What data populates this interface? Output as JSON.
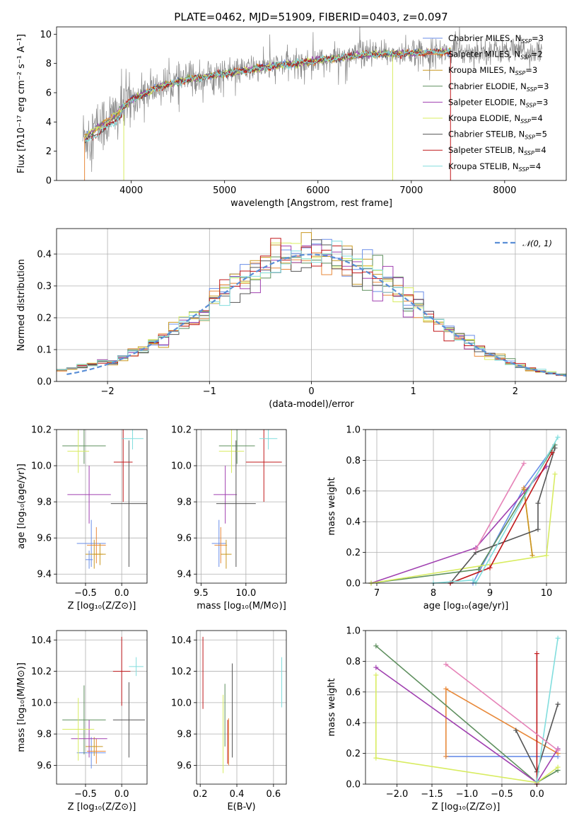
{
  "title": "PLATE=0462, MJD=51909, FIBERID=0403, z=0.097",
  "colors": {
    "Chabrier MILES": "#6a8ee8",
    "Salpeter MILES": "#e8893a",
    "Kroupa MILES": "#c99820",
    "Chabrier ELODIE": "#5e8f5e",
    "Salpeter ELODIE": "#a040b0",
    "Kroupa ELODIE": "#d8ec60",
    "Chabrier STELIB": "#555555",
    "Salpeter STELIB": "#c0181b",
    "Kroupa STELIB": "#82dede",
    "normal": "#5b8fd6",
    "spectrum": "#888888"
  },
  "chart_data": [
    {
      "id": "spectrum",
      "type": "line",
      "xlabel": "wavelength [Angstrom, rest frame]",
      "ylabel": "Flux [fλ10⁻¹⁷ erg cm⁻² s⁻¹ A⁻¹]",
      "xlim": [
        3200,
        8660
      ],
      "ylim": [
        0,
        10.5
      ],
      "xticks": [
        4000,
        5000,
        6000,
        7000,
        8000
      ],
      "yticks": [
        0,
        2,
        4,
        6,
        8,
        10
      ],
      "legend_position": "right",
      "continuum": {
        "x": [
          3500,
          3800,
          4000,
          4300,
          4600,
          5000,
          5500,
          6000,
          6500,
          7000,
          7400,
          8000,
          8400
        ],
        "y": [
          3.0,
          4.3,
          5.5,
          6.4,
          6.9,
          7.3,
          7.8,
          8.2,
          8.6,
          8.7,
          8.8,
          8.9,
          8.7
        ]
      },
      "models_x_range": [
        3500,
        7420
      ],
      "legend": [
        {
          "label": "Chabrier MILES, N",
          "sub": "SSP",
          "val": "=3",
          "color": "Chabrier MILES"
        },
        {
          "label": "Salpeter MILES, N",
          "sub": "SSP",
          "val": "=2",
          "color": "Salpeter MILES"
        },
        {
          "label": "Kroupa MILES, N",
          "sub": "SSP",
          "val": "=3",
          "color": "Kroupa MILES"
        },
        {
          "label": "Chabrier ELODIE, N",
          "sub": "SSP",
          "val": "=3",
          "color": "Chabrier ELODIE"
        },
        {
          "label": "Salpeter ELODIE, N",
          "sub": "SSP",
          "val": "=3",
          "color": "Salpeter ELODIE"
        },
        {
          "label": "Kroupa ELODIE, N",
          "sub": "SSP",
          "val": "=4",
          "color": "Kroupa ELODIE"
        },
        {
          "label": "Chabrier STELIB, N",
          "sub": "SSP",
          "val": "=5",
          "color": "Chabrier STELIB"
        },
        {
          "label": "Salpeter STELIB, N",
          "sub": "SSP",
          "val": "=4",
          "color": "Salpeter STELIB"
        },
        {
          "label": "Kroupa STELIB, N",
          "sub": "SSP",
          "val": "=4",
          "color": "Kroupa STELIB"
        }
      ]
    },
    {
      "id": "residuals",
      "type": "histogram",
      "xlabel": "(data-model)/error",
      "ylabel": "Normed distribution",
      "xlim": [
        -2.5,
        2.5
      ],
      "ylim": [
        0,
        0.48
      ],
      "xticks": [
        -2,
        -1,
        0,
        1,
        2
      ],
      "yticks": [
        0.0,
        0.1,
        0.2,
        0.3,
        0.4
      ],
      "legend_position": "top-right",
      "legend": [
        "𝒩(0, 1)"
      ],
      "bin_width": 0.1,
      "series_order": [
        "Chabrier MILES",
        "Salpeter MILES",
        "Kroupa MILES",
        "Chabrier ELODIE",
        "Salpeter ELODIE",
        "Kroupa ELODIE",
        "Chabrier STELIB",
        "Salpeter STELIB",
        "Kroupa STELIB"
      ]
    },
    {
      "id": "age_vs_Z",
      "type": "errorbar",
      "xlabel": "Z [log₁₀(Z/Z⊙)]",
      "ylabel": "age  [log₁₀(age/yr)]",
      "xlim": [
        -0.9,
        0.35
      ],
      "ylim": [
        9.35,
        10.2
      ],
      "xticks": [
        -0.5,
        0.0
      ],
      "yticks": [
        9.4,
        9.6,
        9.8,
        10.0,
        10.2
      ],
      "points": [
        {
          "s": "Chabrier MILES",
          "x": -0.42,
          "y": 9.57,
          "xe": 0.2,
          "ye": 0.13
        },
        {
          "s": "Salpeter MILES",
          "x": -0.35,
          "y": 9.56,
          "xe": 0.13,
          "ye": 0.1
        },
        {
          "s": "Kroupa MILES",
          "x": -0.38,
          "y": 9.51,
          "xe": 0.12,
          "ye": 0.08
        },
        {
          "s": "Chabrier ELODIE",
          "x": -0.52,
          "y": 10.11,
          "xe": 0.3,
          "ye": 0.1
        },
        {
          "s": "Salpeter ELODIE",
          "x": -0.45,
          "y": 9.84,
          "xe": 0.3,
          "ye": 0.16
        },
        {
          "s": "Kroupa ELODIE",
          "x": -0.6,
          "y": 10.08,
          "xe": 0.15,
          "ye": 0.12
        },
        {
          "s": "Chabrier STELIB",
          "x": 0.1,
          "y": 9.79,
          "xe": 0.25,
          "ye": 0.35
        },
        {
          "s": "Salpeter STELIB",
          "x": 0.02,
          "y": 10.02,
          "xe": 0.13,
          "ye": 0.22
        },
        {
          "s": "Kroupa STELIB",
          "x": 0.15,
          "y": 10.15,
          "xe": 0.15,
          "ye": 0.06
        },
        {
          "s": "Kroupa MILES",
          "x": -0.3,
          "y": 9.51,
          "xe": 0.08,
          "ye": 0.06
        },
        {
          "s": "Chabrier MILES",
          "x": -0.45,
          "y": 9.48,
          "xe": 0.05,
          "ye": 0.05
        }
      ]
    },
    {
      "id": "age_vs_mass",
      "type": "errorbar",
      "xlabel": "mass [log₁₀(M/M⊙)]",
      "ylabel": "",
      "xlim": [
        9.45,
        10.45
      ],
      "ylim": [
        9.35,
        10.2
      ],
      "xticks": [
        9.5,
        10.0
      ],
      "yticks": [
        9.4,
        9.6,
        9.8,
        10.0,
        10.2
      ],
      "points": [
        {
          "s": "Chabrier MILES",
          "x": 9.7,
          "y": 9.57,
          "xe": 0.08,
          "ye": 0.13
        },
        {
          "s": "Salpeter MILES",
          "x": 9.72,
          "y": 9.56,
          "xe": 0.07,
          "ye": 0.1
        },
        {
          "s": "Kroupa MILES",
          "x": 9.78,
          "y": 9.51,
          "xe": 0.06,
          "ye": 0.08
        },
        {
          "s": "Chabrier ELODIE",
          "x": 9.9,
          "y": 10.11,
          "xe": 0.2,
          "ye": 0.1
        },
        {
          "s": "Salpeter ELODIE",
          "x": 9.77,
          "y": 9.84,
          "xe": 0.13,
          "ye": 0.16
        },
        {
          "s": "Kroupa ELODIE",
          "x": 9.84,
          "y": 10.08,
          "xe": 0.14,
          "ye": 0.12
        },
        {
          "s": "Chabrier STELIB",
          "x": 9.89,
          "y": 9.79,
          "xe": 0.22,
          "ye": 0.35
        },
        {
          "s": "Salpeter STELIB",
          "x": 10.2,
          "y": 10.02,
          "xe": 0.2,
          "ye": 0.22
        },
        {
          "s": "Kroupa STELIB",
          "x": 10.25,
          "y": 10.15,
          "xe": 0.1,
          "ye": 0.06
        }
      ]
    },
    {
      "id": "massweight_vs_age",
      "type": "line",
      "xlabel": "age  [log₁₀(age/yr)]",
      "ylabel": "mass weight",
      "xlim": [
        6.8,
        10.35
      ],
      "ylim": [
        0,
        1.0
      ],
      "xticks": [
        7,
        8,
        9,
        10
      ],
      "yticks": [
        0.0,
        0.2,
        0.4,
        0.6,
        0.8,
        1.0
      ],
      "series": [
        {
          "s": "Chabrier MILES",
          "x": [
            8.7,
            9.6,
            10.15
          ],
          "y": [
            0.0,
            0.62,
            0.9
          ]
        },
        {
          "s": "Salpeter MILES",
          "x": [
            9.6,
            9.75
          ],
          "y": [
            0.62,
            0.18
          ]
        },
        {
          "s": "Kroupa MILES",
          "x": [
            9.6,
            9.75
          ],
          "y": [
            0.61,
            0.18
          ]
        },
        {
          "s": "Chabrier ELODIE",
          "x": [
            6.9,
            8.8,
            10.15
          ],
          "y": [
            0.0,
            0.09,
            0.9
          ]
        },
        {
          "s": "Salpeter ELODIE",
          "x": [
            6.9,
            8.75,
            10.0
          ],
          "y": [
            0.0,
            0.23,
            0.76
          ]
        },
        {
          "s": "Kroupa ELODIE",
          "x": [
            6.9,
            10.0,
            10.15
          ],
          "y": [
            0.0,
            0.18,
            0.71
          ]
        },
        {
          "s": "Chabrier STELIB",
          "x": [
            8.3,
            8.75,
            9.85,
            9.85,
            10.15
          ],
          "y": [
            0.0,
            0.2,
            0.35,
            0.52,
            0.88
          ]
        },
        {
          "s": "Salpeter STELIB",
          "x": [
            8.3,
            9.0,
            10.1
          ],
          "y": [
            0.0,
            0.1,
            0.85
          ]
        },
        {
          "s": "Kroupa STELIB",
          "x": [
            8.0,
            8.7,
            8.75,
            10.2
          ],
          "y": [
            0.0,
            0.02,
            0.0,
            0.95
          ]
        },
        {
          "s": "Kroupa MILES pink",
          "color": "#e683b8",
          "x": [
            8.75,
            9.6
          ],
          "y": [
            0.22,
            0.78
          ]
        }
      ]
    },
    {
      "id": "mass_vs_Z",
      "type": "errorbar",
      "xlabel": "Z [log₁₀(Z/Z⊙)]",
      "ylabel": "mass [log₁₀(M/M⊙)]",
      "xlim": [
        -0.9,
        0.35
      ],
      "ylim": [
        9.48,
        10.46
      ],
      "xticks": [
        -0.5,
        0.0
      ],
      "yticks": [
        9.6,
        9.8,
        10.0,
        10.2,
        10.4
      ],
      "points": [
        {
          "s": "Chabrier MILES",
          "x": -0.42,
          "y": 9.68,
          "xe": 0.2,
          "ye": 0.1
        },
        {
          "s": "Salpeter MILES",
          "x": -0.35,
          "y": 9.69,
          "xe": 0.13,
          "ye": 0.08
        },
        {
          "s": "Kroupa MILES",
          "x": -0.38,
          "y": 9.72,
          "xe": 0.12,
          "ye": 0.06
        },
        {
          "s": "Chabrier ELODIE",
          "x": -0.52,
          "y": 9.89,
          "xe": 0.3,
          "ye": 0.22
        },
        {
          "s": "Salpeter ELODIE",
          "x": -0.45,
          "y": 9.77,
          "xe": 0.25,
          "ye": 0.12
        },
        {
          "s": "Kroupa ELODIE",
          "x": -0.6,
          "y": 9.83,
          "xe": 0.22,
          "ye": 0.2
        },
        {
          "s": "Chabrier STELIB",
          "x": 0.1,
          "y": 9.89,
          "xe": 0.22,
          "ye": 0.24
        },
        {
          "s": "Salpeter STELIB",
          "x": 0.0,
          "y": 10.2,
          "xe": 0.12,
          "ye": 0.22
        },
        {
          "s": "Kroupa STELIB",
          "x": 0.2,
          "y": 10.23,
          "xe": 0.1,
          "ye": 0.06
        }
      ]
    },
    {
      "id": "mass_vs_ebv",
      "type": "errorbar",
      "xlabel": "E(B-V)",
      "ylabel": "",
      "xlim": [
        0.18,
        0.67
      ],
      "ylim": [
        9.48,
        10.46
      ],
      "xticks": [
        0.2,
        0.4,
        0.6
      ],
      "yticks": [
        9.6,
        9.8,
        10.0,
        10.2,
        10.4
      ],
      "points": [
        {
          "s": "Salpeter STELIB",
          "x": 0.215,
          "y": 10.19,
          "xe": 0.0,
          "ye": 0.23
        },
        {
          "s": "Chabrier ELODIE",
          "x": 0.335,
          "y": 9.92,
          "xe": 0.0,
          "ye": 0.2
        },
        {
          "s": "Kroupa ELODIE",
          "x": 0.325,
          "y": 9.8,
          "xe": 0.0,
          "ye": 0.25
        },
        {
          "s": "Salpeter MILES",
          "x": 0.355,
          "y": 9.75,
          "xe": 0.0,
          "ye": 0.15
        },
        {
          "s": "Salpeter STELIB",
          "x": 0.35,
          "y": 9.75,
          "xe": 0.0,
          "ye": 0.14
        },
        {
          "s": "Chabrier STELIB",
          "x": 0.375,
          "y": 9.95,
          "xe": 0.0,
          "ye": 0.3
        },
        {
          "s": "Kroupa STELIB",
          "x": 0.645,
          "y": 10.13,
          "xe": 0.0,
          "ye": 0.16
        }
      ]
    },
    {
      "id": "massweight_vs_Z",
      "type": "line",
      "xlabel": "Z [log₁₀(Z/Z⊙)]",
      "ylabel": "mass weight",
      "xlim": [
        -2.45,
        0.42
      ],
      "ylim": [
        0,
        1.0
      ],
      "xticks": [
        -2.0,
        -1.5,
        -1.0,
        -0.5,
        0.0
      ],
      "yticks": [
        0.0,
        0.2,
        0.4,
        0.6,
        0.8,
        1.0
      ],
      "series": [
        {
          "s": "Chabrier MILES",
          "x": [
            -1.3,
            0.3
          ],
          "y": [
            0.18,
            0.18
          ]
        },
        {
          "s": "Salpeter MILES",
          "x": [
            -1.3,
            -1.3,
            0.3
          ],
          "y": [
            0.18,
            0.62,
            0.2
          ]
        },
        {
          "s": "Chabrier ELODIE",
          "x": [
            -2.3,
            0.0,
            0.3
          ],
          "y": [
            0.9,
            0.01,
            0.09
          ]
        },
        {
          "s": "Salpeter ELODIE",
          "x": [
            -2.3,
            0.0,
            0.3
          ],
          "y": [
            0.76,
            0.01,
            0.23
          ]
        },
        {
          "s": "Kroupa ELODIE",
          "x": [
            -2.3,
            -2.3,
            0.0,
            0.3
          ],
          "y": [
            0.71,
            0.17,
            0.01,
            0.11
          ]
        },
        {
          "s": "Chabrier STELIB",
          "x": [
            -0.3,
            0.0,
            0.3
          ],
          "y": [
            0.35,
            0.08,
            0.52
          ]
        },
        {
          "s": "Salpeter STELIB",
          "x": [
            0.0,
            0.0
          ],
          "y": [
            0.0,
            0.85
          ]
        },
        {
          "s": "Kroupa STELIB",
          "x": [
            0.0,
            0.3
          ],
          "y": [
            0.02,
            0.95
          ]
        },
        {
          "s": "Kroupa MILES pink",
          "color": "#e683b8",
          "x": [
            -1.3,
            0.3
          ],
          "y": [
            0.78,
            0.22
          ]
        }
      ]
    }
  ]
}
